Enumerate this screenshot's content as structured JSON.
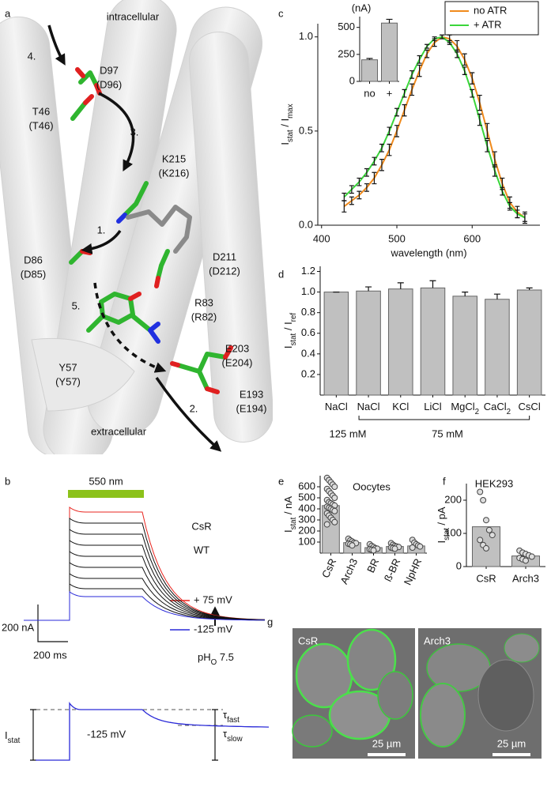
{
  "panel_labels": [
    "a",
    "b",
    "c",
    "d",
    "e",
    "f",
    "g"
  ],
  "structure": {
    "intracellular": "intracellular",
    "extracellular": "extracellular",
    "steps": [
      "1.",
      "2.",
      "3.",
      "4.",
      "5."
    ],
    "residues": [
      [
        "D97",
        "(D96)"
      ],
      [
        "T46",
        "(T46)"
      ],
      [
        "K215",
        "(K216)"
      ],
      [
        "D86",
        "(D85)"
      ],
      [
        "D211",
        "(D212)"
      ],
      [
        "R83",
        "(R82)"
      ],
      [
        "Y57",
        "(Y57)"
      ],
      [
        "E203",
        "(E204)"
      ],
      [
        "E193",
        "(E194)"
      ]
    ]
  },
  "traces": {
    "stimulus": "550 nm",
    "construct": "CsR",
    "variant": "WT",
    "voltages": [
      "+ 75 mV",
      "-125 mV"
    ],
    "ph": [
      "pH",
      "O",
      " 7.5"
    ],
    "scale_current": "200 nA",
    "scale_time": "200 ms",
    "inset_label": [
      "I",
      "stat"
    ],
    "inset_voltage": "-125 mV",
    "tau_fast": [
      "τ",
      "fast"
    ],
    "tau_slow": [
      "τ",
      "slow"
    ]
  },
  "images": {
    "labels": [
      "CsR",
      "Arch3"
    ],
    "scale_bars": [
      "25 µm",
      "25 µm"
    ]
  },
  "chart_data": [
    {
      "type": "line",
      "xlabel": "wavelength (nm)",
      "ylabel": [
        "I",
        "stat",
        " / I",
        "max"
      ],
      "xlim": [
        395,
        690
      ],
      "xticks": [
        400,
        500,
        600
      ],
      "ylim": [
        0,
        1.07
      ],
      "yticks": [
        {
          "value": 0,
          "label": "0.0"
        },
        {
          "value": 0.5,
          "label": "0.5"
        },
        {
          "value": 1,
          "label": "1.0"
        }
      ],
      "legend_position": "top-right",
      "x": [
        430,
        440,
        450,
        460,
        470,
        480,
        490,
        500,
        510,
        520,
        530,
        540,
        550,
        560,
        570,
        580,
        590,
        600,
        610,
        620,
        630,
        640,
        650,
        660,
        670
      ],
      "series": [
        {
          "name": "no ATR",
          "color": "#f08a1c",
          "values": [
            0.1,
            0.13,
            0.16,
            0.2,
            0.25,
            0.32,
            0.4,
            0.5,
            0.61,
            0.72,
            0.82,
            0.91,
            0.97,
            1.0,
            0.99,
            0.95,
            0.88,
            0.78,
            0.65,
            0.5,
            0.35,
            0.22,
            0.12,
            0.07,
            0.04
          ],
          "errors": [
            0.03,
            0.02,
            0.02,
            0.02,
            0.03,
            0.03,
            0.03,
            0.03,
            0.03,
            0.03,
            0.03,
            0.02,
            0.02,
            0.01,
            0.02,
            0.03,
            0.03,
            0.03,
            0.04,
            0.04,
            0.04,
            0.03,
            0.03,
            0.03,
            0.03
          ]
        },
        {
          "name": "+ ATR",
          "color": "#3ad63a",
          "values": [
            0.15,
            0.19,
            0.23,
            0.28,
            0.34,
            0.41,
            0.5,
            0.6,
            0.7,
            0.8,
            0.88,
            0.95,
            0.99,
            1.0,
            0.97,
            0.91,
            0.82,
            0.7,
            0.56,
            0.42,
            0.29,
            0.18,
            0.1,
            0.06,
            0.04
          ],
          "errors": [
            0.02,
            0.02,
            0.02,
            0.02,
            0.02,
            0.02,
            0.02,
            0.02,
            0.02,
            0.02,
            0.02,
            0.01,
            0.01,
            0.01,
            0.01,
            0.02,
            0.02,
            0.02,
            0.03,
            0.03,
            0.03,
            0.02,
            0.02,
            0.02,
            0.02
          ]
        }
      ]
    },
    {
      "type": "bar",
      "ylabel": "(nA)",
      "categories": [
        "no",
        "+"
      ],
      "values": [
        200,
        540
      ],
      "errors": [
        12,
        35
      ],
      "color": "#c0c0c0",
      "ylim": [
        0,
        600
      ],
      "yticks": [
        0,
        250,
        500
      ]
    },
    {
      "type": "bar",
      "ylabel": [
        "I",
        "stat",
        " / I",
        "ref"
      ],
      "categories": [
        [
          "NaCl"
        ],
        [
          "NaCl"
        ],
        [
          "KCl"
        ],
        [
          "LiCl"
        ],
        [
          "MgCl",
          "2"
        ],
        [
          "CaCl",
          "2"
        ],
        [
          "CsCl"
        ]
      ],
      "values": [
        1.0,
        1.01,
        1.03,
        1.04,
        0.96,
        0.93,
        1.02
      ],
      "errors": [
        0,
        0.04,
        0.06,
        0.07,
        0.04,
        0.05,
        0.02
      ],
      "color": "#c0c0c0",
      "ylim": [
        0,
        1.25
      ],
      "yticks": [
        0.2,
        0.4,
        0.6,
        0.8,
        {
          "value": 1,
          "label": "1.0"
        },
        1.2
      ],
      "annotations": [
        "125 mM",
        "75 mM"
      ]
    },
    {
      "type": "bar",
      "title": "Oocytes",
      "ylabel": [
        "I",
        "stat",
        " / nA"
      ],
      "categories": [
        "CsR",
        "Arch3",
        "BR",
        "ß-BR",
        "NpHR"
      ],
      "values": [
        430,
        95,
        50,
        60,
        65
      ],
      "errors": [
        20,
        8,
        6,
        6,
        10
      ],
      "points": [
        [
          680,
          660,
          640,
          620,
          600,
          580,
          560,
          540,
          520,
          500,
          480,
          460,
          450,
          440,
          430,
          420,
          410,
          400,
          390,
          380,
          360,
          340,
          320,
          300,
          280,
          260
        ],
        [
          130,
          115,
          105,
          95,
          90,
          85,
          80,
          70
        ],
        [
          80,
          65,
          55,
          45,
          40,
          35,
          30,
          25
        ],
        [
          90,
          75,
          65,
          60,
          55,
          50,
          45,
          40
        ],
        [
          120,
          95,
          80,
          70,
          60,
          50
        ]
      ],
      "color": "#c0c0c0",
      "ylim": [
        0,
        700
      ],
      "yticks": [
        100,
        200,
        300,
        400,
        500,
        600
      ]
    },
    {
      "type": "bar",
      "title": "HEK293",
      "ylabel": [
        "I",
        "stat",
        " / pA"
      ],
      "categories": [
        "CsR",
        "Arch3"
      ],
      "values": [
        120,
        32
      ],
      "points": [
        [
          225,
          200,
          140,
          110,
          95,
          80,
          65,
          55
        ],
        [
          48,
          42,
          38,
          34,
          30,
          26,
          22,
          18
        ]
      ],
      "color": "#c0c0c0",
      "ylim": [
        0,
        250
      ],
      "yticks": [
        0,
        100,
        200
      ]
    }
  ]
}
